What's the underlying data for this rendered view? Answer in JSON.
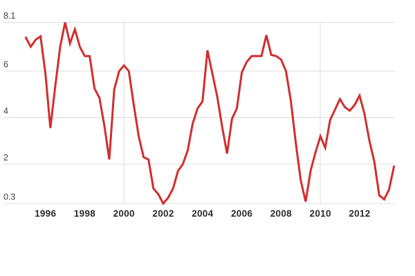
{
  "chart_data": {
    "type": "line",
    "title": "",
    "xlabel": "",
    "ylabel": "",
    "legend": "none",
    "grid": "horizontal gridlines at y ticks; vertical gridlines at decade years",
    "x_range": [
      1995.0,
      2013.79
    ],
    "y_range": [
      0.3,
      8.1
    ],
    "x_ticks": [
      {
        "year": 1996,
        "label": "1996"
      },
      {
        "year": 1998,
        "label": "1998"
      },
      {
        "year": 2000,
        "label": "2000"
      },
      {
        "year": 2002,
        "label": "2002"
      },
      {
        "year": 2004,
        "label": "2004"
      },
      {
        "year": 2006,
        "label": "2006"
      },
      {
        "year": 2008,
        "label": "2008"
      },
      {
        "year": 2010,
        "label": "2010"
      },
      {
        "year": 2012,
        "label": "2012"
      }
    ],
    "y_ticks": [
      {
        "value": 8.1,
        "label": "8.1"
      },
      {
        "value": 6,
        "label": "6"
      },
      {
        "value": 4,
        "label": "4"
      },
      {
        "value": 2,
        "label": "2"
      },
      {
        "value": 0.3,
        "label": "0.3"
      }
    ],
    "x_gridline_years": [
      2000,
      2010
    ],
    "series": [
      {
        "name": "series-1",
        "color": "#d22d2d",
        "start_year": 1995.0,
        "interval_years": 0.25,
        "values": [
          7.45,
          7.05,
          7.35,
          7.5,
          5.9,
          3.55,
          5.35,
          7.05,
          8.1,
          7.2,
          7.8,
          7.05,
          6.65,
          6.65,
          5.25,
          4.85,
          3.65,
          2.2,
          5.2,
          6.0,
          6.25,
          6.0,
          4.55,
          3.2,
          2.3,
          2.2,
          0.95,
          0.7,
          0.3,
          0.55,
          0.95,
          1.7,
          2.0,
          2.6,
          3.75,
          4.4,
          4.7,
          6.9,
          5.9,
          4.9,
          3.6,
          2.45,
          3.95,
          4.4,
          5.95,
          6.4,
          6.65,
          6.65,
          6.65,
          7.55,
          6.7,
          6.65,
          6.5,
          6.0,
          4.7,
          2.9,
          1.3,
          0.38,
          1.7,
          2.5,
          3.2,
          2.7,
          3.9,
          4.35,
          4.8,
          4.45,
          4.3,
          4.55,
          4.95,
          4.15,
          3.0,
          2.1,
          0.65,
          0.48,
          0.9,
          1.9
        ]
      }
    ]
  },
  "colors": {
    "background": "#ffffff",
    "line": "#d22d2d",
    "gridline": "#dcdcdc",
    "y_label": "#404040",
    "x_label": "#2b2b2b"
  }
}
